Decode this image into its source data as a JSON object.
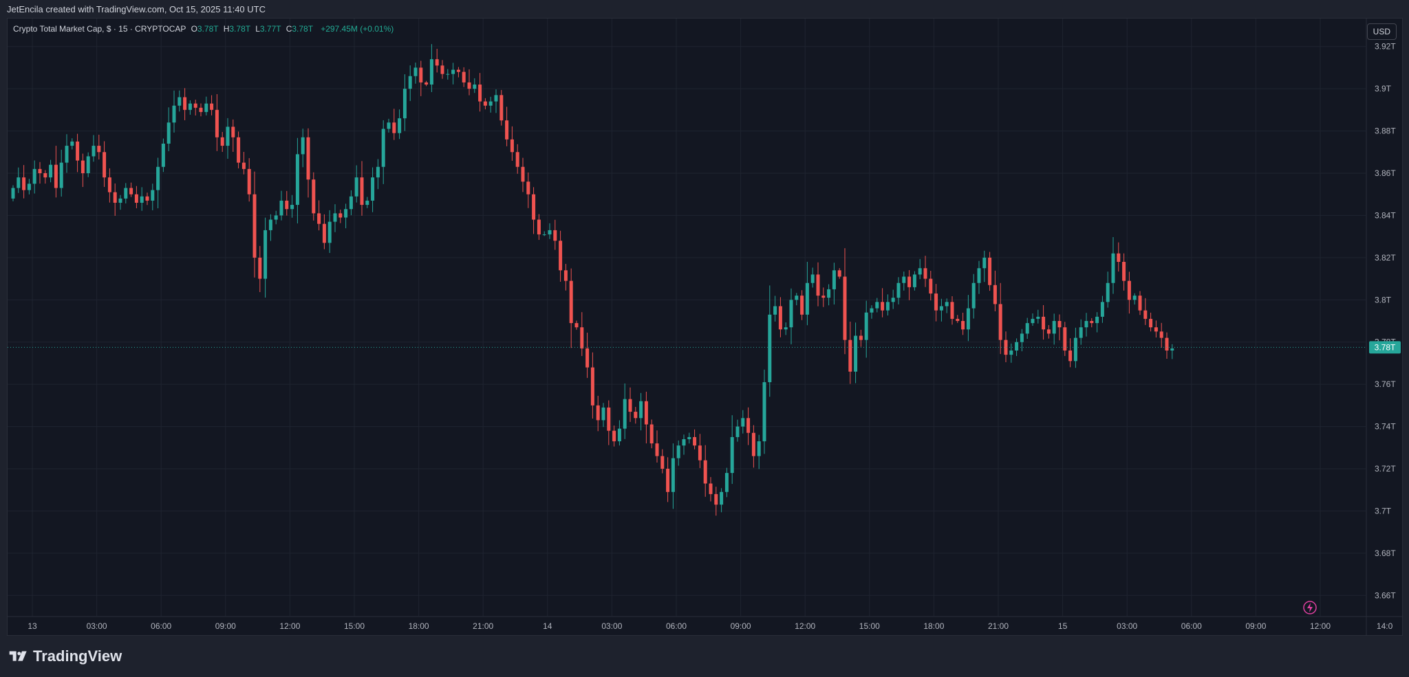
{
  "header": {
    "caption": "JetEncila created with TradingView.com, Oct 15, 2025 11:40 UTC"
  },
  "legend": {
    "symbol": "Crypto Total Market Cap, $ · 15 · CRYPTOCAP",
    "open_label": "O",
    "open": "3.78T",
    "high_label": "H",
    "high": "3.78T",
    "low_label": "L",
    "low": "3.77T",
    "close_label": "C",
    "close": "3.78T",
    "change": "+297.45M (+0.01%)"
  },
  "currency": "USD",
  "brand": "TradingView",
  "colors": {
    "up": "#26a69a",
    "down": "#ef5350",
    "background": "#131722",
    "grid": "#1f2430",
    "text": "#b2b5be"
  },
  "icons": {
    "logo": "tradingview-logo",
    "flash": "flash-icon"
  },
  "chart_data": {
    "type": "candlestick",
    "ylim": [
      3.65,
      3.93
    ],
    "y_unit": "T",
    "y_ticks": [
      "3.66T",
      "3.68T",
      "3.7T",
      "3.72T",
      "3.74T",
      "3.76T",
      "3.78T",
      "3.8T",
      "3.82T",
      "3.84T",
      "3.86T",
      "3.88T",
      "3.9T",
      "3.92T"
    ],
    "x_ticks": [
      "13",
      "03:00",
      "06:00",
      "09:00",
      "12:00",
      "15:00",
      "18:00",
      "21:00",
      "14",
      "03:00",
      "06:00",
      "09:00",
      "12:00",
      "15:00",
      "18:00",
      "21:00",
      "15",
      "03:00",
      "06:00",
      "09:00",
      "12:00",
      "14:0"
    ],
    "last_price": 3.7775,
    "last_price_label": "3.78T",
    "close_series": [
      3.853,
      3.858,
      3.852,
      3.855,
      3.862,
      3.86,
      3.858,
      3.864,
      3.853,
      3.865,
      3.873,
      3.875,
      3.866,
      3.86,
      3.868,
      3.873,
      3.87,
      3.858,
      3.851,
      3.846,
      3.848,
      3.853,
      3.85,
      3.846,
      3.849,
      3.847,
      3.852,
      3.863,
      3.874,
      3.884,
      3.892,
      3.896,
      3.89,
      3.893,
      3.891,
      3.889,
      3.893,
      3.89,
      3.877,
      3.873,
      3.882,
      3.877,
      3.865,
      3.862,
      3.85,
      3.82,
      3.81,
      3.833,
      3.838,
      3.84,
      3.847,
      3.843,
      3.845,
      3.869,
      3.877,
      3.857,
      3.841,
      3.836,
      3.827,
      3.837,
      3.841,
      3.839,
      3.843,
      3.849,
      3.858,
      3.845,
      3.847,
      3.858,
      3.863,
      3.881,
      3.884,
      3.879,
      3.886,
      3.9,
      3.906,
      3.91,
      3.903,
      3.902,
      3.914,
      3.911,
      3.907,
      3.907,
      3.909,
      3.908,
      3.903,
      3.9,
      3.902,
      3.894,
      3.892,
      3.894,
      3.897,
      3.885,
      3.876,
      3.87,
      3.863,
      3.856,
      3.85,
      3.838,
      3.831,
      3.831,
      3.833,
      3.828,
      3.814,
      3.809,
      3.789,
      3.787,
      3.777,
      3.768,
      3.75,
      3.743,
      3.749,
      3.738,
      3.733,
      3.739,
      3.753,
      3.747,
      3.744,
      3.752,
      3.741,
      3.732,
      3.726,
      3.72,
      3.709,
      3.725,
      3.731,
      3.734,
      3.735,
      3.731,
      3.724,
      3.713,
      3.708,
      3.703,
      3.709,
      3.718,
      3.735,
      3.74,
      3.744,
      3.737,
      3.726,
      3.733,
      3.761,
      3.793,
      3.797,
      3.786,
      3.787,
      3.8,
      3.802,
      3.793,
      3.808,
      3.812,
      3.802,
      3.801,
      3.805,
      3.814,
      3.811,
      3.781,
      3.766,
      3.783,
      3.781,
      3.794,
      3.796,
      3.799,
      3.795,
      3.799,
      3.801,
      3.808,
      3.811,
      3.806,
      3.812,
      3.815,
      3.81,
      3.803,
      3.795,
      3.797,
      3.799,
      3.791,
      3.79,
      3.786,
      3.796,
      3.808,
      3.815,
      3.82,
      3.807,
      3.798,
      3.781,
      3.774,
      3.776,
      3.78,
      3.784,
      3.789,
      3.791,
      3.792,
      3.786,
      3.784,
      3.79,
      3.787,
      3.776,
      3.771,
      3.782,
      3.787,
      3.79,
      3.789,
      3.792,
      3.799,
      3.808,
      3.822,
      3.818,
      3.809,
      3.8,
      3.802,
      3.795,
      3.791,
      3.787,
      3.785,
      3.782,
      3.776,
      3.777
    ]
  }
}
